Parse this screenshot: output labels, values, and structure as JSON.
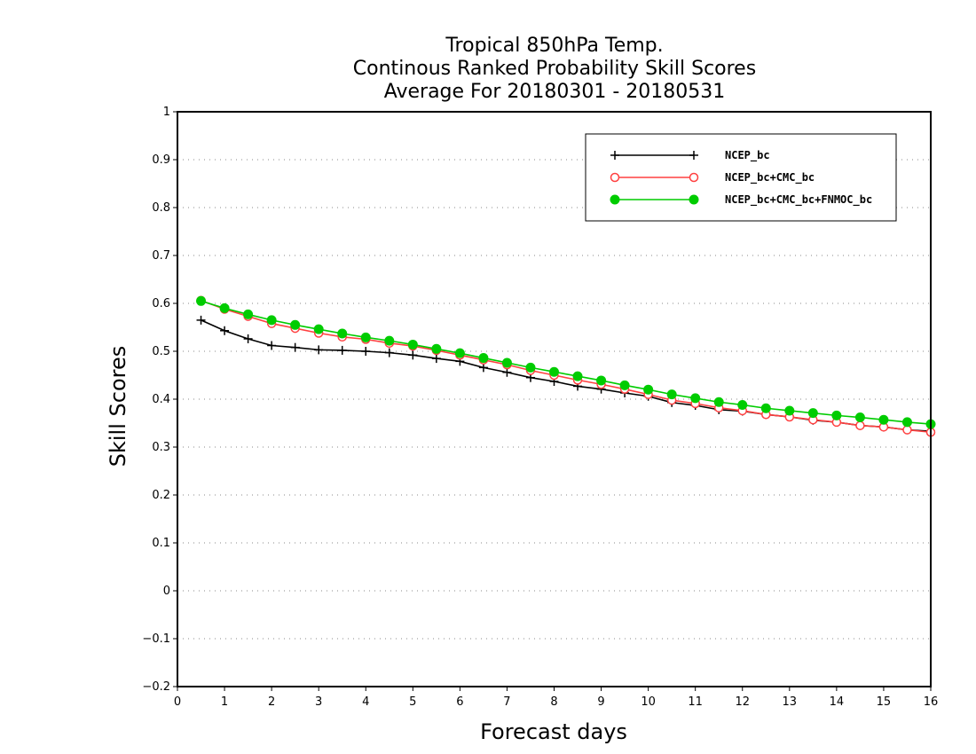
{
  "chart_data": {
    "type": "line",
    "title": [
      "Tropical 850hPa Temp.",
      "Continous Ranked Probability Skill Scores",
      "Average For 20180301 - 20180531"
    ],
    "xlabel": "Forecast days",
    "ylabel": "Skill Scores",
    "xlim": [
      0,
      16
    ],
    "ylim": [
      -0.2,
      1
    ],
    "xticks": [
      "0",
      "1",
      "2",
      "3",
      "4",
      "5",
      "6",
      "7",
      "8",
      "9",
      "10",
      "11",
      "12",
      "13",
      "14",
      "15",
      "16"
    ],
    "yticks": [
      "-0.2",
      "-0.1",
      "0",
      "0.1",
      "0.2",
      "0.3",
      "0.4",
      "0.5",
      "0.6",
      "0.7",
      "0.8",
      "0.9",
      "1"
    ],
    "grid": "horizontal dotted",
    "legend_position": "top-right",
    "x": [
      0.5,
      1,
      1.5,
      2,
      2.5,
      3,
      3.5,
      4,
      4.5,
      5,
      5.5,
      6,
      6.5,
      7,
      7.5,
      8,
      8.5,
      9,
      9.5,
      10,
      10.5,
      11,
      11.5,
      12,
      12.5,
      13,
      13.5,
      14,
      14.5,
      15,
      15.5,
      16
    ],
    "series": [
      {
        "name": "NCEP_bc",
        "color": "#000000",
        "marker": "plus",
        "values": [
          0.565,
          0.543,
          0.526,
          0.512,
          0.508,
          0.503,
          0.502,
          0.5,
          0.497,
          0.492,
          0.485,
          0.479,
          0.466,
          0.456,
          0.445,
          0.437,
          0.427,
          0.421,
          0.413,
          0.406,
          0.393,
          0.387,
          0.378,
          0.375,
          0.368,
          0.363,
          0.356,
          0.352,
          0.345,
          0.342,
          0.336,
          0.333
        ]
      },
      {
        "name": "NCEP_bc+CMC_bc",
        "color": "#ff4040",
        "marker": "open-circle",
        "values": [
          0.606,
          0.588,
          0.573,
          0.558,
          0.548,
          0.538,
          0.53,
          0.525,
          0.517,
          0.511,
          0.502,
          0.492,
          0.482,
          0.472,
          0.46,
          0.45,
          0.44,
          0.431,
          0.421,
          0.41,
          0.398,
          0.391,
          0.382,
          0.376,
          0.368,
          0.363,
          0.357,
          0.352,
          0.345,
          0.342,
          0.336,
          0.331
        ]
      },
      {
        "name": "NCEP_bc+CMC_bc+FNMOC_bc",
        "color": "#00cc00",
        "marker": "filled-circle",
        "values": [
          0.605,
          0.59,
          0.577,
          0.565,
          0.555,
          0.546,
          0.537,
          0.529,
          0.522,
          0.514,
          0.505,
          0.496,
          0.486,
          0.476,
          0.466,
          0.457,
          0.448,
          0.439,
          0.429,
          0.42,
          0.41,
          0.402,
          0.394,
          0.388,
          0.381,
          0.376,
          0.371,
          0.366,
          0.362,
          0.357,
          0.352,
          0.348
        ]
      }
    ]
  }
}
